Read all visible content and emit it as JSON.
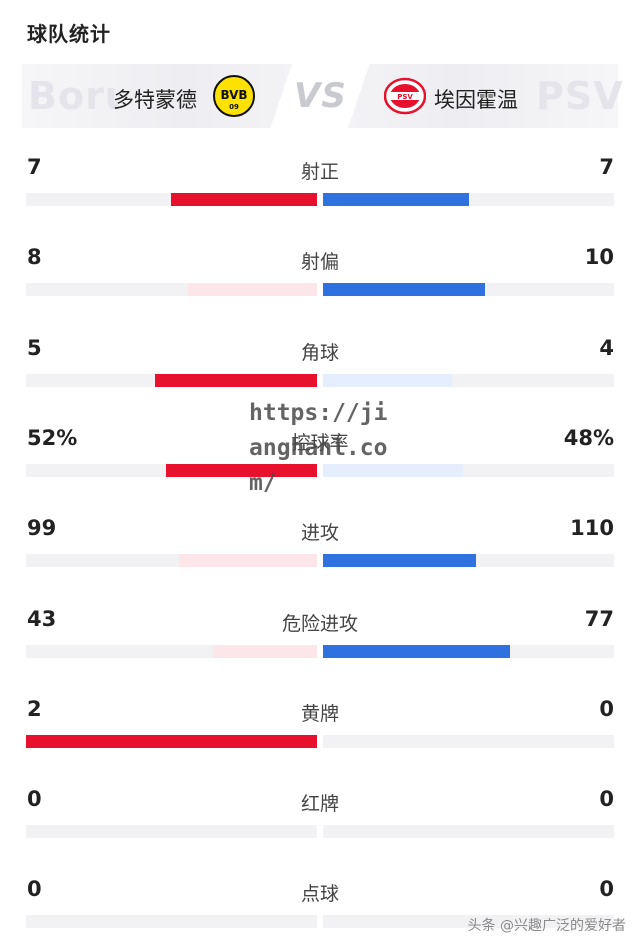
{
  "title": "球队统计",
  "home": {
    "name": "多特蒙德",
    "ghost": "Boru",
    "logo_text": "BVB",
    "logo_sub": "09",
    "color": "#e8112d",
    "faded_color": "#fde6ea"
  },
  "away": {
    "name": "埃因霍温",
    "ghost": "PSV",
    "logo_text": "PSV",
    "color": "#2f72df",
    "faded_color": "#e5eefc"
  },
  "vs": "VS",
  "stats": [
    {
      "label": "射正",
      "home": "7",
      "away": "7",
      "home_frac": 0.5,
      "away_frac": 0.5,
      "home_lead": true,
      "away_lead": true
    },
    {
      "label": "射偏",
      "home": "8",
      "away": "10",
      "home_frac": 0.444,
      "away_frac": 0.556,
      "home_lead": false,
      "away_lead": true
    },
    {
      "label": "角球",
      "home": "5",
      "away": "4",
      "home_frac": 0.556,
      "away_frac": 0.444,
      "home_lead": true,
      "away_lead": false
    },
    {
      "label": "控球率",
      "home": "52%",
      "away": "48%",
      "home_frac": 0.52,
      "away_frac": 0.48,
      "home_lead": true,
      "away_lead": false
    },
    {
      "label": "进攻",
      "home": "99",
      "away": "110",
      "home_frac": 0.474,
      "away_frac": 0.526,
      "home_lead": false,
      "away_lead": true
    },
    {
      "label": "危险进攻",
      "home": "43",
      "away": "77",
      "home_frac": 0.358,
      "away_frac": 0.642,
      "home_lead": false,
      "away_lead": true
    },
    {
      "label": "黄牌",
      "home": "2",
      "away": "0",
      "home_frac": 1.0,
      "away_frac": 0.0,
      "home_lead": true,
      "away_lead": false
    },
    {
      "label": "红牌",
      "home": "0",
      "away": "0",
      "home_frac": 0.0,
      "away_frac": 0.0,
      "home_lead": false,
      "away_lead": false
    },
    {
      "label": "点球",
      "home": "0",
      "away": "0",
      "home_frac": 0.0,
      "away_frac": 0.0,
      "home_lead": false,
      "away_lead": false
    }
  ],
  "watermark": "https://ji\nanghanl.co\nm/",
  "credit": "头条 @兴趣广泛的爱好者"
}
